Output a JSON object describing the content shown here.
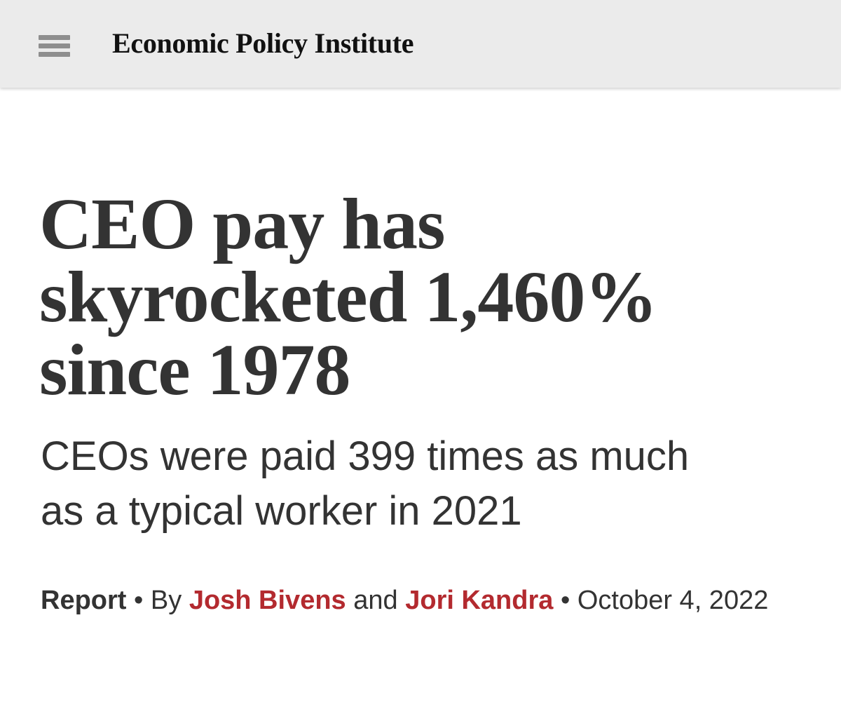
{
  "header": {
    "title": "Economic Policy Institute"
  },
  "article": {
    "headline_lines": [
      "CEO pay has",
      "skyrocketed 1,460%",
      "since 1978"
    ],
    "subtitle_lines": [
      "CEOs were paid 399 times as much",
      "as a typical worker in 2021"
    ],
    "byline": {
      "type": "Report",
      "separator": "•",
      "by": "By",
      "authors": [
        "Josh Bivens",
        "Jori Kandra"
      ],
      "and": "and",
      "date": "October 4, 2022"
    }
  }
}
